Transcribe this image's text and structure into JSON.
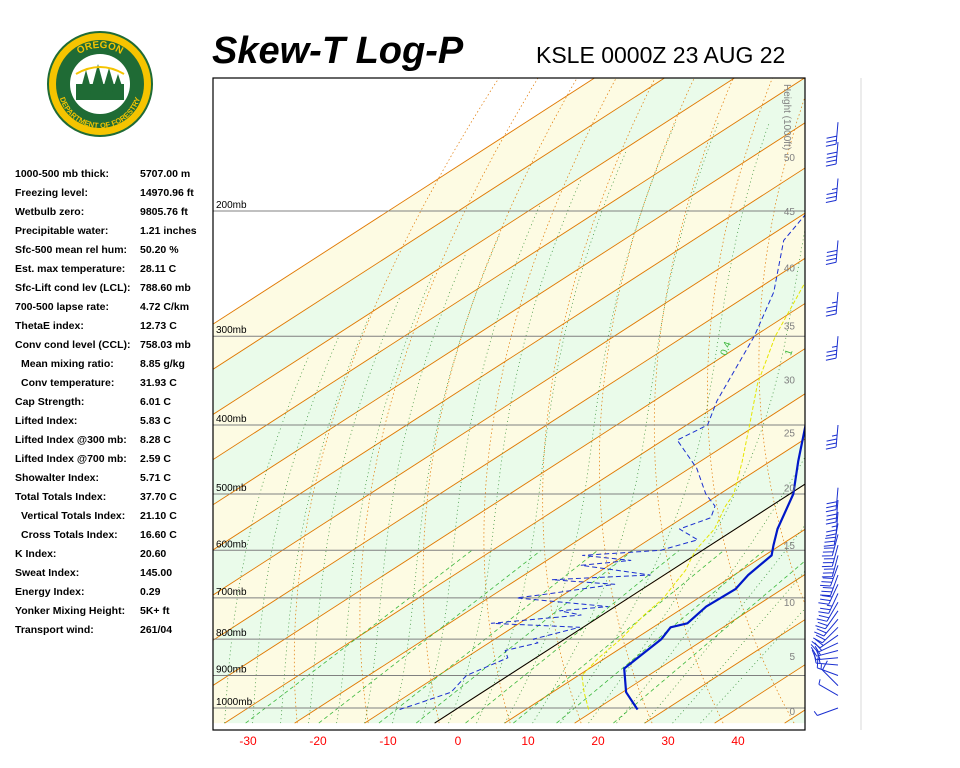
{
  "header": {
    "title": "Skew-T Log-P",
    "station": "KSLE 0000Z 23 AUG 22"
  },
  "logo": {
    "top_text": "OREGON",
    "bottom_text": "DEPARTMENT OF FORESTRY",
    "ring_color": "#f5c400",
    "inner_color": "#1f6b35"
  },
  "indices": [
    {
      "label": "1000-500 mb thick:",
      "value": "5707.00 m",
      "indent": false
    },
    {
      "label": "Freezing level:",
      "value": "14970.96 ft",
      "indent": false
    },
    {
      "label": "Wetbulb zero:",
      "value": "9805.76 ft",
      "indent": false
    },
    {
      "label": "Precipitable water:",
      "value": "1.21 inches",
      "indent": false
    },
    {
      "label": "Sfc-500 mean rel hum:",
      "value": "50.20 %",
      "indent": false
    },
    {
      "label": "Est. max temperature:",
      "value": "28.11 C",
      "indent": false
    },
    {
      "label": "Sfc-Lift cond lev (LCL):",
      "value": "788.60 mb",
      "indent": false
    },
    {
      "label": "700-500 lapse rate:",
      "value": "4.72 C/km",
      "indent": false
    },
    {
      "label": "ThetaE index:",
      "value": "12.73 C",
      "indent": false
    },
    {
      "label": "Conv cond level (CCL):",
      "value": "758.03 mb",
      "indent": false
    },
    {
      "label": "Mean mixing ratio:",
      "value": "8.85 g/kg",
      "indent": true
    },
    {
      "label": "Conv temperature:",
      "value": "31.93 C",
      "indent": true
    },
    {
      "label": "Cap Strength:",
      "value": "6.01 C",
      "indent": false
    },
    {
      "label": "Lifted Index:",
      "value": "5.83 C",
      "indent": false
    },
    {
      "label": "Lifted Index @300 mb:",
      "value": "8.28 C",
      "indent": false
    },
    {
      "label": "Lifted Index @700 mb:",
      "value": "2.59 C",
      "indent": false
    },
    {
      "label": "Showalter Index:",
      "value": "5.71 C",
      "indent": false
    },
    {
      "label": "Total Totals Index:",
      "value": "37.70 C",
      "indent": false
    },
    {
      "label": "Vertical Totals Index:",
      "value": "21.10 C",
      "indent": true
    },
    {
      "label": "Cross Totals Index:",
      "value": "16.60 C",
      "indent": true
    },
    {
      "label": "K Index:",
      "value": "20.60",
      "indent": false
    },
    {
      "label": "Sweat Index:",
      "value": "145.00",
      "indent": false
    },
    {
      "label": "Energy Index:",
      "value": "0.29",
      "indent": false
    },
    {
      "label": "Yonker Mixing Height:",
      "value": "5K+ ft",
      "indent": false
    },
    {
      "label": "Transport wind:",
      "value": "261/04",
      "indent": false
    }
  ],
  "colors": {
    "temperature": "#0018c8",
    "dewpoint": "#1a2fd0",
    "parcel": "#e6e600",
    "isotherm": "#e07800",
    "dry_adiabat": "#e07800",
    "moist_adiabat": "#2e8b2e",
    "mixing_ratio": "#3cb83c",
    "isobar": "#808080",
    "band_green": "#eafbea",
    "band_yellow": "#fdfbe3",
    "axis_label": "#ff0000",
    "barb": "#1a2fd0"
  },
  "chart_data": {
    "type": "line",
    "title": "",
    "xlabel": "",
    "ylabel": "",
    "x_ticks": [
      -30,
      -20,
      -10,
      0,
      10,
      20,
      30,
      40
    ],
    "pressure_levels": [
      {
        "p": 1000,
        "label": "1000mb"
      },
      {
        "p": 900,
        "label": "900mb"
      },
      {
        "p": 800,
        "label": "800mb"
      },
      {
        "p": 700,
        "label": "700mb"
      },
      {
        "p": 600,
        "label": "600mb"
      },
      {
        "p": 500,
        "label": "500mb"
      },
      {
        "p": 400,
        "label": "400mb"
      },
      {
        "p": 300,
        "label": "300mb"
      },
      {
        "p": 200,
        "label": "200mb"
      }
    ],
    "height_axis": {
      "title": "Height (1000ft)",
      "ticks": [
        {
          "label": "0",
          "p": 1010
        },
        {
          "label": "5",
          "p": 845
        },
        {
          "label": "10",
          "p": 710
        },
        {
          "label": "15",
          "p": 590
        },
        {
          "label": "20",
          "p": 490
        },
        {
          "label": "25",
          "p": 410
        },
        {
          "label": "30",
          "p": 345
        },
        {
          "label": "35",
          "p": 290
        },
        {
          "label": "40",
          "p": 240
        },
        {
          "label": "45",
          "p": 200
        },
        {
          "label": "50",
          "p": 168
        }
      ]
    },
    "mixing_ratio_labels": [
      "0.4",
      "1",
      "2",
      "3",
      "5"
    ],
    "series": [
      {
        "key": "temperature",
        "points": [
          [
            1005,
            26.0
          ],
          [
            1000,
            25.5
          ],
          [
            950,
            20.5
          ],
          [
            880,
            15.0
          ],
          [
            800,
            13.8
          ],
          [
            770,
            12.5
          ],
          [
            760,
            14.0
          ],
          [
            720,
            13.0
          ],
          [
            680,
            13.3
          ],
          [
            650,
            12.0
          ],
          [
            610,
            11.0
          ],
          [
            590,
            9.0
          ],
          [
            560,
            6.0
          ],
          [
            500,
            0.5
          ],
          [
            450,
            -6.0
          ],
          [
            400,
            -13.0
          ],
          [
            350,
            -20.5
          ],
          [
            300,
            -30.5
          ],
          [
            260,
            -39.5
          ],
          [
            240,
            -42.0
          ],
          [
            200,
            -51.0
          ],
          [
            180,
            -51.0
          ],
          [
            150,
            -51.5
          ]
        ]
      },
      {
        "key": "dewpoint",
        "points": [
          [
            1005,
            -8.0
          ],
          [
            990,
            -7.0
          ],
          [
            950,
            -4.5
          ],
          [
            900,
            -6.0
          ],
          [
            850,
            -4.0
          ],
          [
            830,
            -6.0
          ],
          [
            810,
            -3.0
          ],
          [
            800,
            -4.5
          ],
          [
            770,
            -0.5
          ],
          [
            760,
            -14.0
          ],
          [
            740,
            -3.0
          ],
          [
            730,
            -7.0
          ],
          [
            720,
            -1.0
          ],
          [
            700,
            -16.0
          ],
          [
            690,
            -12.0
          ],
          [
            670,
            -5.0
          ],
          [
            660,
            -15.0
          ],
          [
            650,
            -2.0
          ],
          [
            630,
            -14.0
          ],
          [
            620,
            -8.0
          ],
          [
            610,
            -16.0
          ],
          [
            600,
            -6.0
          ],
          [
            580,
            -3.0
          ],
          [
            560,
            -8.0
          ],
          [
            540,
            -6.0
          ],
          [
            520,
            -8.0
          ],
          [
            500,
            -12.0
          ],
          [
            460,
            -19.0
          ],
          [
            420,
            -28.0
          ],
          [
            400,
            -27.0
          ],
          [
            370,
            -31.0
          ],
          [
            300,
            -40.0
          ],
          [
            260,
            -47.0
          ],
          [
            220,
            -57.0
          ],
          [
            200,
            -60.0
          ],
          [
            170,
            -62.0
          ],
          [
            150,
            -65.0
          ]
        ]
      },
      {
        "key": "parcel",
        "points": [
          [
            1005,
            19.0
          ],
          [
            950,
            14.5
          ],
          [
            900,
            10.5
          ],
          [
            850,
            9.0
          ],
          [
            800,
            8.0
          ],
          [
            770,
            7.0
          ],
          [
            740,
            6.0
          ],
          [
            700,
            5.0
          ],
          [
            680,
            4.0
          ],
          [
            660,
            3.0
          ],
          [
            640,
            2.0
          ],
          [
            620,
            0.5
          ],
          [
            600,
            -1.0
          ],
          [
            560,
            -3.0
          ],
          [
            520,
            -6.5
          ],
          [
            500,
            -8.0
          ],
          [
            450,
            -14.0
          ],
          [
            400,
            -21.0
          ],
          [
            350,
            -29.0
          ],
          [
            300,
            -37.0
          ],
          [
            250,
            -45.0
          ],
          [
            200,
            -56.0
          ]
        ]
      }
    ],
    "wind_barbs": [
      {
        "p": 1000,
        "dir": 250,
        "speed": 5
      },
      {
        "p": 960,
        "dir": 300,
        "speed": 5
      },
      {
        "p": 930,
        "dir": 315,
        "speed": 10
      },
      {
        "p": 900,
        "dir": 290,
        "speed": 15
      },
      {
        "p": 870,
        "dir": 275,
        "speed": 20
      },
      {
        "p": 850,
        "dir": 265,
        "speed": 20
      },
      {
        "p": 830,
        "dir": 255,
        "speed": 20
      },
      {
        "p": 810,
        "dir": 245,
        "speed": 20
      },
      {
        "p": 790,
        "dir": 235,
        "speed": 20
      },
      {
        "p": 770,
        "dir": 225,
        "speed": 20
      },
      {
        "p": 750,
        "dir": 220,
        "speed": 20
      },
      {
        "p": 730,
        "dir": 215,
        "speed": 20
      },
      {
        "p": 710,
        "dir": 210,
        "speed": 20
      },
      {
        "p": 690,
        "dir": 205,
        "speed": 25
      },
      {
        "p": 670,
        "dir": 205,
        "speed": 30
      },
      {
        "p": 650,
        "dir": 200,
        "speed": 30
      },
      {
        "p": 630,
        "dir": 200,
        "speed": 30
      },
      {
        "p": 610,
        "dir": 195,
        "speed": 30
      },
      {
        "p": 590,
        "dir": 195,
        "speed": 30
      },
      {
        "p": 570,
        "dir": 195,
        "speed": 30
      },
      {
        "p": 550,
        "dir": 190,
        "speed": 30
      },
      {
        "p": 530,
        "dir": 185,
        "speed": 25
      },
      {
        "p": 510,
        "dir": 185,
        "speed": 30
      },
      {
        "p": 490,
        "dir": 185,
        "speed": 30
      },
      {
        "p": 400,
        "dir": 185,
        "speed": 35
      },
      {
        "p": 300,
        "dir": 185,
        "speed": 35
      },
      {
        "p": 260,
        "dir": 185,
        "speed": 35
      },
      {
        "p": 220,
        "dir": 185,
        "speed": 40
      },
      {
        "p": 180,
        "dir": 185,
        "speed": 35
      },
      {
        "p": 160,
        "dir": 185,
        "speed": 40
      },
      {
        "p": 150,
        "dir": 185,
        "speed": 30
      }
    ]
  }
}
